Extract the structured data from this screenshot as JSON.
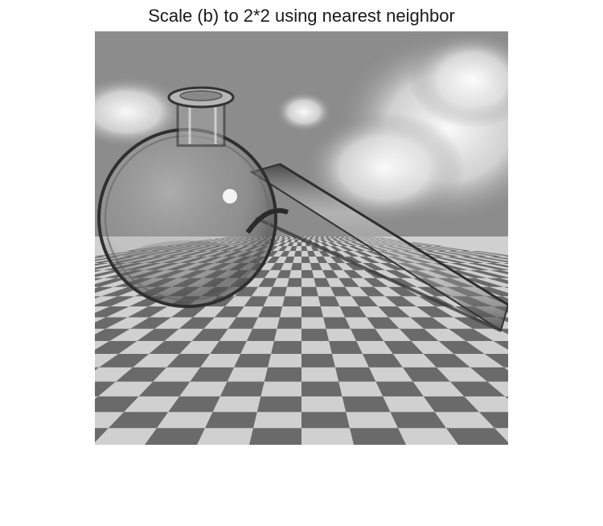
{
  "figure": {
    "title": "Scale (b) to 2*2 using nearest neighbor"
  },
  "image": {
    "description_icon": "glass-flask-on-checkerboard-image",
    "palette": {
      "sky": "#8c8c8c",
      "cloud": "#e6e6e6",
      "floor_light": "#d2d2d2",
      "floor_dark": "#6a6a6a",
      "glass_edge": "#3a3a3a"
    }
  }
}
